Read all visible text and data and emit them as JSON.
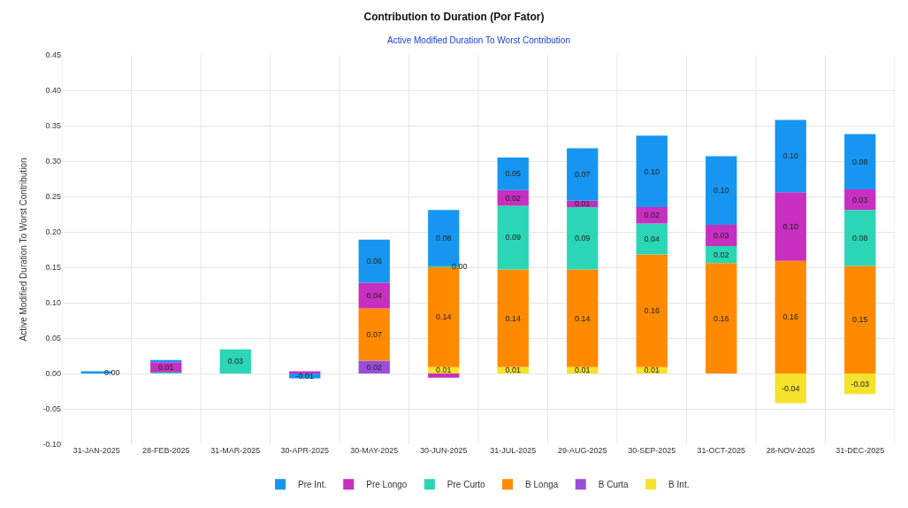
{
  "chart_data": {
    "type": "bar",
    "title": "Contribution to Duration (Por Fator)",
    "subtitle": "Active Modified Duration To Worst Contribution",
    "ylabel": "Active Modified Duration To Worst Contribution",
    "stacked": true,
    "grid": true,
    "legend": "bottom",
    "categories": [
      "31-JAN-2025",
      "28-FEB-2025",
      "31-MAR-2025",
      "30-APR-2025",
      "30-MAY-2025",
      "30-JUN-2025",
      "31-JUL-2025",
      "29-AUG-2025",
      "30-SEP-2025",
      "31-OCT-2025",
      "28-NOV-2025",
      "31-DEC-2025"
    ],
    "ylim": [
      -0.1,
      0.45
    ],
    "yticks": [
      {
        "value": -0.1,
        "label": "-0.10"
      },
      {
        "value": -0.05,
        "label": "-0.05"
      },
      {
        "value": 0,
        "label": "0.00"
      },
      {
        "value": 0.05,
        "label": "0.05"
      },
      {
        "value": 0.1,
        "label": "0.10"
      },
      {
        "value": 0.15,
        "label": "0.15"
      },
      {
        "value": 0.2,
        "label": "0.20"
      },
      {
        "value": 0.25,
        "label": "0.25"
      },
      {
        "value": 0.3,
        "label": "0.30"
      },
      {
        "value": 0.35,
        "label": "0.35"
      },
      {
        "value": 0.4,
        "label": "0.40"
      },
      {
        "value": 0.45,
        "label": "0.45"
      }
    ],
    "series": [
      {
        "name": "B Int.",
        "color": "#f5e22a",
        "values": [
          null,
          null,
          null,
          null,
          null,
          0.009,
          0.009,
          0.009,
          0.009,
          null,
          -0.042,
          -0.029
        ],
        "value_labels": [
          null,
          null,
          null,
          null,
          null,
          "0.01",
          "0.01",
          "0.01",
          "0.01",
          null,
          "-0.04",
          "-0.03"
        ]
      },
      {
        "name": "B Curta",
        "color": "#9a4fdb",
        "values": [
          null,
          null,
          null,
          null,
          0.018,
          null,
          null,
          null,
          null,
          null,
          null,
          null
        ],
        "value_labels": [
          null,
          null,
          null,
          null,
          "0.02",
          null,
          null,
          null,
          null,
          null,
          null,
          null
        ]
      },
      {
        "name": "B Longa",
        "color": "#ff8a00",
        "values": [
          null,
          null,
          null,
          null,
          0.074,
          0.142,
          0.138,
          0.138,
          0.159,
          0.156,
          0.159,
          0.152
        ],
        "value_labels": [
          null,
          null,
          null,
          null,
          "0.07",
          "0.14",
          "0.14",
          "0.14",
          "0.16",
          "0.16",
          "0.16",
          "0.15"
        ]
      },
      {
        "name": "Pre Curto",
        "color": "#2ad6b5",
        "values": [
          null,
          0.002,
          0.034,
          null,
          null,
          0.001,
          0.09,
          0.088,
          0.044,
          0.024,
          null,
          0.079
        ],
        "value_labels": [
          null,
          null,
          "0.03",
          null,
          null,
          "0.00",
          "0.09",
          "0.09",
          "0.04",
          "0.02",
          null,
          "0.08"
        ]
      },
      {
        "name": "Pre Longo",
        "color": "#c72fc0",
        "values": [
          null,
          0.014,
          null,
          0.003,
          0.036,
          -0.006,
          0.022,
          0.009,
          0.023,
          0.03,
          0.097,
          0.029
        ],
        "value_labels": [
          null,
          "0.01",
          null,
          null,
          "0.04",
          null,
          "0.02",
          "0.01",
          "0.02",
          "0.03",
          "0.10",
          "0.03"
        ]
      },
      {
        "name": "Pre Int.",
        "color": "#1696f0",
        "values": [
          0.003,
          0.003,
          null,
          -0.007,
          0.061,
          0.079,
          0.046,
          0.074,
          0.101,
          0.097,
          0.102,
          0.078
        ],
        "value_labels": [
          "0.00",
          null,
          null,
          "-0.01",
          "0.06",
          "0.08",
          "0.05",
          "0.07",
          "0.10",
          "0.10",
          "0.10",
          "0.08"
        ]
      }
    ]
  }
}
